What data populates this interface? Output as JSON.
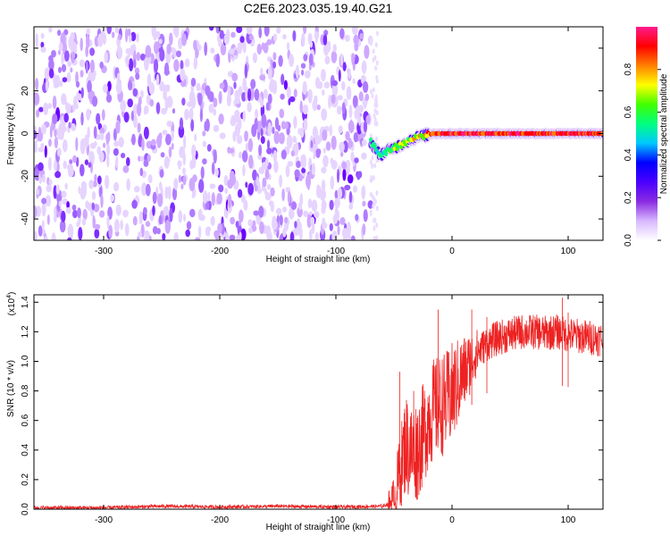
{
  "title": "C2E6.2023.035.19.40.G21",
  "chart_data": [
    {
      "type": "heatmap",
      "xlabel": "Height of straight line (km)",
      "ylabel": "Frequency (Hz)",
      "xlim": [
        -360,
        130
      ],
      "ylim": [
        -50,
        50
      ],
      "x_ticks": [
        -300,
        -200,
        -100,
        0,
        100
      ],
      "y_ticks": [
        -40,
        -20,
        0,
        20,
        40
      ],
      "colorbar": {
        "label": "Normalized spectral amplitude",
        "range": [
          0.0,
          1.0
        ],
        "ticks": [
          0.0,
          0.2,
          0.4,
          0.6,
          0.8
        ],
        "tick_labels": [
          "0.0",
          "0.2",
          "0.4",
          "0.6",
          "0.8"
        ],
        "colormap": [
          "#ffffff",
          "#d8b8ff",
          "#8a2be2",
          "#4b00ff",
          "#0000ff",
          "#00c8ff",
          "#00ff80",
          "#40ff00",
          "#ffff00",
          "#ff8000",
          "#ff0000",
          "#ff1a8c"
        ]
      },
      "noise_region_x": [
        -360,
        -70
      ],
      "carrier": [
        {
          "x": -70,
          "y": -4,
          "amp": 0.45
        },
        {
          "x": -62,
          "y": -10,
          "amp": 0.55
        },
        {
          "x": -55,
          "y": -8,
          "amp": 0.6
        },
        {
          "x": -47,
          "y": -6,
          "amp": 0.62
        },
        {
          "x": -40,
          "y": -4,
          "amp": 0.65
        },
        {
          "x": -32,
          "y": -2,
          "amp": 0.7
        },
        {
          "x": -24,
          "y": -1,
          "amp": 0.75
        },
        {
          "x": -16,
          "y": 0,
          "amp": 0.85
        },
        {
          "x": 0,
          "y": 0,
          "amp": 0.9
        },
        {
          "x": 50,
          "y": 0,
          "amp": 0.92
        },
        {
          "x": 130,
          "y": 0,
          "amp": 0.92
        }
      ]
    },
    {
      "type": "line",
      "xlabel": "Height of straight line (km)",
      "ylabel": "SNR (10 * v/v)",
      "y_exponent_label": "(x10",
      "y_exponent": "4",
      "xlim": [
        -360,
        130
      ],
      "ylim": [
        0,
        1.45
      ],
      "x_ticks": [
        -300,
        -200,
        -100,
        0,
        100
      ],
      "y_ticks": [
        0.0,
        0.2,
        0.4,
        0.6,
        0.8,
        1.0,
        1.2,
        1.4
      ],
      "y_tick_labels": [
        "0.0",
        "0.2",
        "0.4",
        "0.6",
        "0.8",
        "1.0",
        "1.2",
        "1.4"
      ],
      "color": "#ee2222",
      "series": [
        {
          "x": [
            -360,
            -300,
            -250,
            -200,
            -150,
            -100,
            -60,
            -50,
            -45,
            -40,
            -35,
            -30,
            -25,
            -20,
            -15,
            -10,
            -5,
            0,
            5,
            10,
            15,
            20,
            30,
            40,
            50,
            60,
            70,
            80,
            90,
            100,
            110,
            120,
            130
          ],
          "values": [
            0.01,
            0.01,
            0.02,
            0.015,
            0.02,
            0.015,
            0.02,
            0.05,
            0.25,
            0.45,
            0.38,
            0.4,
            0.5,
            0.62,
            0.68,
            0.7,
            0.72,
            0.78,
            0.85,
            0.92,
            0.98,
            1.05,
            1.12,
            1.16,
            1.18,
            1.2,
            1.2,
            1.19,
            1.2,
            1.18,
            1.17,
            1.16,
            1.15
          ]
        }
      ],
      "spikes": [
        {
          "x": -45,
          "y": 0.93
        },
        {
          "x": -33,
          "y": 0.8
        },
        {
          "x": -12,
          "y": 1.35
        },
        {
          "x": 17,
          "y": 1.35
        },
        {
          "x": 30,
          "y": 1.3
        },
        {
          "x": 95,
          "y": 1.43
        },
        {
          "x": 100,
          "y": 1.33
        }
      ]
    }
  ]
}
